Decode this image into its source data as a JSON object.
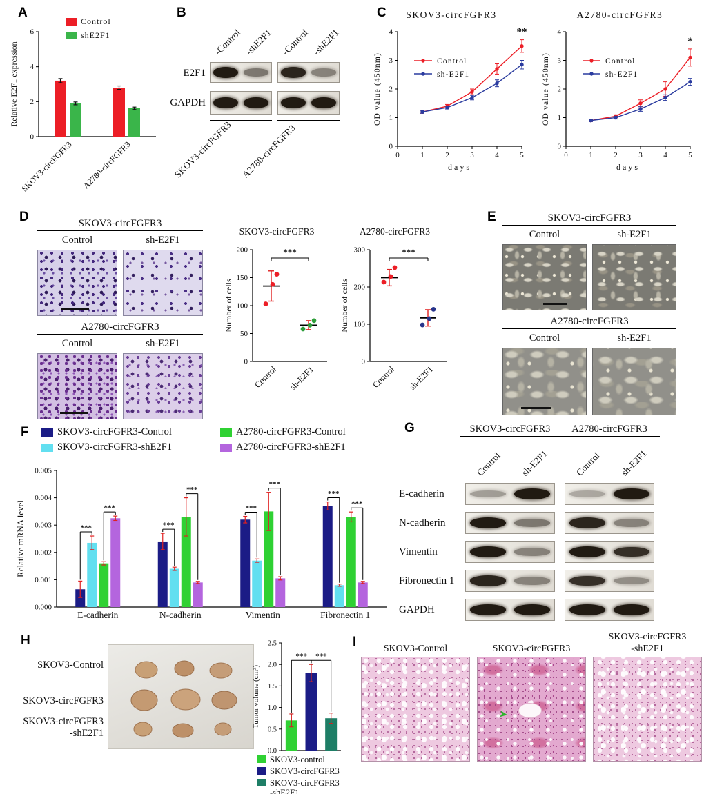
{
  "panels": {
    "A": {
      "letter": "A"
    },
    "B": {
      "letter": "B",
      "col_labels": [
        "-Control",
        "-shE2F1",
        "-Control",
        "-shE2F1"
      ],
      "rows": [
        {
          "label": "E2F1",
          "bands": [
            [
              0.95,
              0.5
            ],
            [
              0.9,
              0.45
            ]
          ]
        },
        {
          "label": "GAPDH",
          "bands": [
            [
              0.95,
              0.95
            ],
            [
              0.95,
              0.95
            ]
          ]
        }
      ],
      "group_labels": [
        "SKOV3-circFGFR3",
        "A2780-circFGFR3"
      ]
    },
    "C": {
      "letter": "C"
    },
    "D": {
      "letter": "D",
      "groups": [
        {
          "title": "SKOV3-circFGFR3",
          "cols": [
            "Control",
            "sh-E2F1"
          ]
        },
        {
          "title": "A2780-circFGFR3",
          "cols": [
            "Control",
            "sh-E2F1"
          ]
        }
      ]
    },
    "E": {
      "letter": "E",
      "groups": [
        {
          "title": "SKOV3-circFGFR3",
          "cols": [
            "Control",
            "sh-E2F1"
          ]
        },
        {
          "title": "A2780-circFGFR3",
          "cols": [
            "Control",
            "sh-E2F1"
          ]
        }
      ]
    },
    "F": {
      "letter": "F"
    },
    "G": {
      "letter": "G",
      "headers": [
        "SKOV3-circFGFR3",
        "A2780-circFGFR3"
      ],
      "col_labels": [
        "Control",
        "sh-E2F1",
        "Control",
        "sh-E2F1"
      ],
      "rows": [
        {
          "label": "E-cadherin",
          "bands": [
            [
              0.35,
              0.95
            ],
            [
              0.3,
              0.95
            ]
          ]
        },
        {
          "label": "N-cadherin",
          "bands": [
            [
              0.95,
              0.5
            ],
            [
              0.9,
              0.45
            ]
          ]
        },
        {
          "label": "Vimentin",
          "bands": [
            [
              0.95,
              0.45
            ],
            [
              0.95,
              0.85
            ]
          ]
        },
        {
          "label": "Fibronectin 1",
          "bands": [
            [
              0.9,
              0.45
            ],
            [
              0.85,
              0.4
            ]
          ]
        },
        {
          "label": "GAPDH",
          "bands": [
            [
              0.95,
              0.95
            ],
            [
              0.95,
              0.95
            ]
          ]
        }
      ]
    },
    "H": {
      "letter": "H",
      "row_labels": [
        "SKOV3-Control",
        "SKOV3-circFGFR3",
        "SKOV3-circFGFR3\n-shE2F1"
      ]
    },
    "I": {
      "letter": "I",
      "titles": [
        "SKOV3-Control",
        "SKOV3-circFGFR3",
        "SKOV3-circFGFR3\n-shE2F1"
      ],
      "arrow": "➤"
    }
  },
  "legends": {
    "A": [
      {
        "label": "Control",
        "color": "#ec1e26"
      },
      {
        "label": "shE2F1",
        "color": "#3ab54a"
      }
    ],
    "F": [
      {
        "label": "SKOV3-circFGFR3-Control",
        "color": "#1b1c86"
      },
      {
        "label": "SKOV3-circFGFR3-shE2F1",
        "color": "#62dff0"
      },
      {
        "label": "A2780-circFGFR3-Control",
        "color": "#2fd133"
      },
      {
        "label": "A2780-circFGFR3-shE2F1",
        "color": "#b465de"
      }
    ],
    "H": [
      {
        "label": "SKOV3-control",
        "color": "#2fd133"
      },
      {
        "label": "SKOV3-circFGFR3",
        "color": "#1b1c86"
      },
      {
        "label": "SKOV3-circFGFR3\n-shE2F1",
        "color": "#1e7e66"
      }
    ]
  },
  "chart_data": [
    {
      "id": "barA",
      "type": "bar",
      "categories": [
        "SKOV3-circFGFR3",
        "A2780-circFGFR3"
      ],
      "series": [
        {
          "name": "Control",
          "color": "#ec1e26",
          "values": [
            3.2,
            2.8
          ],
          "errors": [
            0.12,
            0.1
          ]
        },
        {
          "name": "shE2F1",
          "color": "#3ab54a",
          "values": [
            1.9,
            1.62
          ],
          "errors": [
            0.08,
            0.07
          ]
        }
      ],
      "ylabel": "Relative E2F1 expression",
      "ylim": [
        0,
        6
      ],
      "yticks": [
        0,
        2,
        4,
        6
      ],
      "grid": false,
      "legend_position": "top"
    },
    {
      "id": "lineC1",
      "type": "line",
      "title": "SKOV3-circFGFR3",
      "x": [
        1,
        2,
        3,
        4,
        5
      ],
      "xlim": [
        0,
        5
      ],
      "xticks": [
        0,
        1,
        2,
        3,
        4,
        5
      ],
      "series": [
        {
          "name": "Control",
          "color": "#ec1e26",
          "values": [
            1.2,
            1.4,
            1.9,
            2.7,
            3.5
          ],
          "errors": [
            0.05,
            0.06,
            0.1,
            0.18,
            0.22
          ]
        },
        {
          "name": "sh-E2F1",
          "color": "#2a3b9f",
          "values": [
            1.2,
            1.35,
            1.7,
            2.2,
            2.85
          ],
          "errors": [
            0.05,
            0.05,
            0.08,
            0.12,
            0.15
          ]
        }
      ],
      "xlabel": "days",
      "ylabel": "OD value (450nm)",
      "ylim": [
        0,
        4
      ],
      "yticks": [
        0,
        1,
        2,
        3,
        4
      ],
      "significance": "**",
      "grid": false,
      "legend_position": "inside-left"
    },
    {
      "id": "lineC2",
      "type": "line",
      "title": "A2780-circFGFR3",
      "x": [
        1,
        2,
        3,
        4,
        5
      ],
      "xlim": [
        0,
        5
      ],
      "xticks": [
        0,
        1,
        2,
        3,
        4,
        5
      ],
      "series": [
        {
          "name": "Control",
          "color": "#ec1e26",
          "values": [
            0.9,
            1.05,
            1.5,
            2.0,
            3.1
          ],
          "errors": [
            0.04,
            0.05,
            0.12,
            0.25,
            0.3
          ]
        },
        {
          "name": "sh-E2F1",
          "color": "#2a3b9f",
          "values": [
            0.9,
            1.0,
            1.3,
            1.7,
            2.25
          ],
          "errors": [
            0.04,
            0.05,
            0.08,
            0.1,
            0.12
          ]
        }
      ],
      "xlabel": "days",
      "ylabel": "OD value (450nm)",
      "ylim": [
        0,
        4
      ],
      "yticks": [
        0,
        1,
        2,
        3,
        4
      ],
      "significance": "*",
      "grid": false,
      "legend_position": "inside-left"
    },
    {
      "id": "scatD1",
      "type": "scatter",
      "title": "SKOV3-circFGFR3",
      "categories": [
        "Control",
        "sh-E2F1"
      ],
      "points": [
        [
          103,
          138,
          156
        ],
        [
          58,
          65,
          73
        ]
      ],
      "means": [
        135,
        65
      ],
      "errs": [
        27,
        8
      ],
      "colors": [
        "#ec1e26",
        "#2e9e3a"
      ],
      "ylabel": "Number of cells",
      "ylim": [
        0,
        200
      ],
      "yticks": [
        0,
        50,
        100,
        150,
        200
      ],
      "significance": "***",
      "grid": false
    },
    {
      "id": "scatD2",
      "type": "scatter",
      "title": "A2780-circFGFR3",
      "categories": [
        "Control",
        "sh-E2F1"
      ],
      "points": [
        [
          213,
          228,
          252
        ],
        [
          98,
          115,
          140
        ]
      ],
      "means": [
        225,
        117
      ],
      "errs": [
        22,
        22
      ],
      "colors": [
        "#ec1e26",
        "#27348b"
      ],
      "ylabel": "Number of cells",
      "ylim": [
        0,
        300
      ],
      "yticks": [
        0,
        100,
        200,
        300
      ],
      "significance": "***",
      "grid": false
    },
    {
      "id": "barF",
      "type": "bar",
      "categories": [
        "E-cadherin",
        "N-cadherin",
        "Vimentin",
        "Fibronectin 1"
      ],
      "series": [
        {
          "name": "SKOV3-circFGFR3-Control",
          "color": "#1b1c86",
          "values": [
            0.00065,
            0.0024,
            0.0032,
            0.0037
          ],
          "errors": [
            0.0003,
            0.0003,
            0.00012,
            0.00015
          ]
        },
        {
          "name": "SKOV3-circFGFR3-shE2F1",
          "color": "#62dff0",
          "values": [
            0.00235,
            0.0014,
            0.0017,
            0.0008
          ],
          "errors": [
            0.00025,
            6e-05,
            6e-05,
            4e-05
          ]
        },
        {
          "name": "A2780-circFGFR3-Control",
          "color": "#2fd133",
          "values": [
            0.0016,
            0.0033,
            0.0035,
            0.0033
          ],
          "errors": [
            6e-05,
            0.0007,
            0.0007,
            0.00018
          ]
        },
        {
          "name": "A2780-circFGFR3-shE2F1",
          "color": "#b465de",
          "values": [
            0.00325,
            0.0009,
            0.00105,
            0.0009
          ],
          "errors": [
            8e-05,
            4e-05,
            6e-05,
            4e-05
          ]
        }
      ],
      "ylabel": "Relative mRNA level",
      "ylim": [
        0,
        0.005
      ],
      "yticks": [
        0,
        0.001,
        0.002,
        0.003,
        0.004,
        0.005
      ],
      "sig": [
        {
          "a": [
            0,
            0
          ],
          "b": [
            0,
            1
          ],
          "label": "***"
        },
        {
          "a": [
            0,
            2
          ],
          "b": [
            0,
            3
          ],
          "label": "***"
        },
        {
          "a": [
            1,
            0
          ],
          "b": [
            1,
            1
          ],
          "label": "***"
        },
        {
          "a": [
            1,
            2
          ],
          "b": [
            1,
            3
          ],
          "label": "***"
        },
        {
          "a": [
            2,
            0
          ],
          "b": [
            2,
            1
          ],
          "label": "***"
        },
        {
          "a": [
            2,
            2
          ],
          "b": [
            2,
            3
          ],
          "label": "***"
        },
        {
          "a": [
            3,
            0
          ],
          "b": [
            3,
            1
          ],
          "label": "***"
        },
        {
          "a": [
            3,
            2
          ],
          "b": [
            3,
            3
          ],
          "label": "***"
        }
      ],
      "grid": false,
      "legend_position": "top"
    },
    {
      "id": "barH",
      "type": "bar",
      "categories": [
        "SKOV3-control",
        "SKOV3-circFGFR3",
        "SKOV3-circFGFR3-shE2F1"
      ],
      "values": [
        0.7,
        1.8,
        0.75
      ],
      "errors": [
        0.15,
        0.2,
        0.12
      ],
      "colors": [
        "#2fd133",
        "#1b1c86",
        "#1e7e66"
      ],
      "ylabel": "Tumor volume (cm³)",
      "ylim": [
        0,
        2.5
      ],
      "yticks": [
        0,
        0.5,
        1,
        1.5,
        2,
        2.5
      ],
      "sig": [
        {
          "a": [
            0,
            0
          ],
          "b": [
            1,
            0
          ],
          "label": "***"
        },
        {
          "a": [
            1,
            0
          ],
          "b": [
            2,
            0
          ],
          "label": "***"
        }
      ],
      "grid": false,
      "legend_position": "bottom"
    }
  ]
}
